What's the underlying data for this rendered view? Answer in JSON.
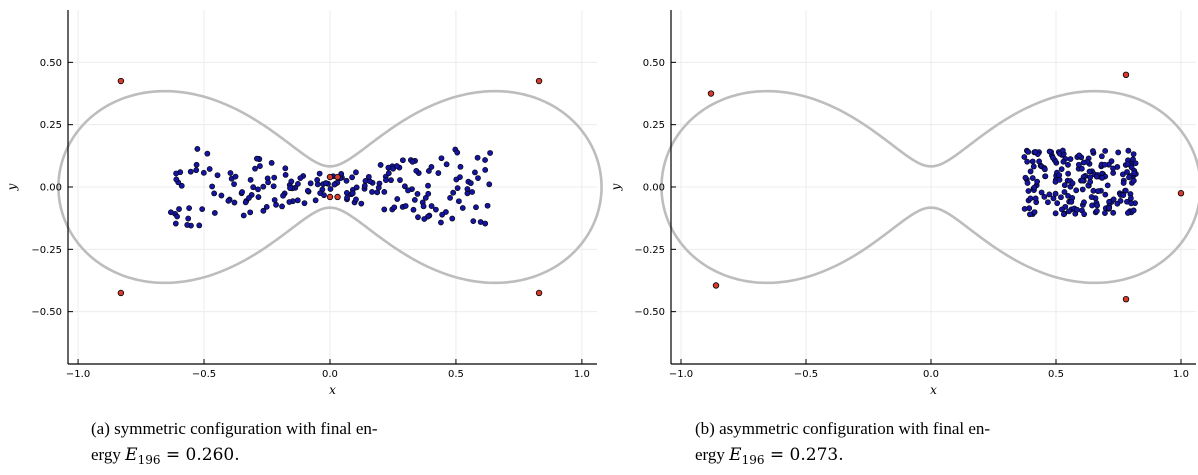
{
  "chart_data": [
    {
      "type": "scatter",
      "panel": "a",
      "xlabel": "x",
      "ylabel": "y",
      "xlim": [
        -1.04,
        1.06
      ],
      "ylim": [
        -0.71,
        0.71
      ],
      "xticks": [
        -1.0,
        -0.5,
        0.0,
        0.5,
        1.0
      ],
      "xticklabels": [
        "−1.0",
        "−0.5",
        "0.0",
        "0.5",
        "1.0"
      ],
      "yticks": [
        -0.5,
        -0.25,
        0.0,
        0.25,
        0.5
      ],
      "yticklabels": [
        "−0.50",
        "−0.25",
        "0.00",
        "0.25",
        "0.50"
      ],
      "grid": true,
      "curve_color": "#bdbdbd",
      "boundary_point_color": "#d63c2c",
      "interior_point_color": "#1414a0",
      "boundary_points": [
        [
          -0.83,
          0.425
        ],
        [
          0.83,
          0.425
        ],
        [
          -0.83,
          -0.425
        ],
        [
          0.83,
          -0.425
        ],
        [
          0.0,
          0.04
        ],
        [
          0.03,
          0.04
        ],
        [
          0.0,
          -0.04
        ],
        [
          0.03,
          -0.04
        ]
      ],
      "caption": {
        "label": "(a) symmetric configuration with final en-",
        "line2_prefix": "ergy ",
        "energy_symbol": "E",
        "energy_subscript": "196",
        "energy_value": " = 0.260."
      }
    },
    {
      "type": "scatter",
      "panel": "b",
      "xlabel": "x",
      "ylabel": "y",
      "xlim": [
        -1.04,
        1.06
      ],
      "ylim": [
        -0.71,
        0.71
      ],
      "xticks": [
        -1.0,
        -0.5,
        0.0,
        0.5,
        1.0
      ],
      "xticklabels": [
        "−1.0",
        "−0.5",
        "0.0",
        "0.5",
        "1.0"
      ],
      "yticks": [
        -0.5,
        -0.25,
        0.0,
        0.25,
        0.5
      ],
      "yticklabels": [
        "−0.50",
        "−0.25",
        "0.00",
        "0.25",
        "0.50"
      ],
      "grid": true,
      "curve_color": "#bdbdbd",
      "boundary_point_color": "#d63c2c",
      "interior_point_color": "#1414a0",
      "boundary_points": [
        [
          -0.88,
          0.375
        ],
        [
          0.78,
          0.45
        ],
        [
          -0.86,
          -0.395
        ],
        [
          0.78,
          -0.45
        ],
        [
          1.0,
          -0.025
        ]
      ],
      "caption": {
        "label": "(b) asymmetric configuration with final en-",
        "line2_prefix": "ergy ",
        "energy_symbol": "E",
        "energy_subscript": "196",
        "energy_value": " = 0.273."
      }
    }
  ]
}
